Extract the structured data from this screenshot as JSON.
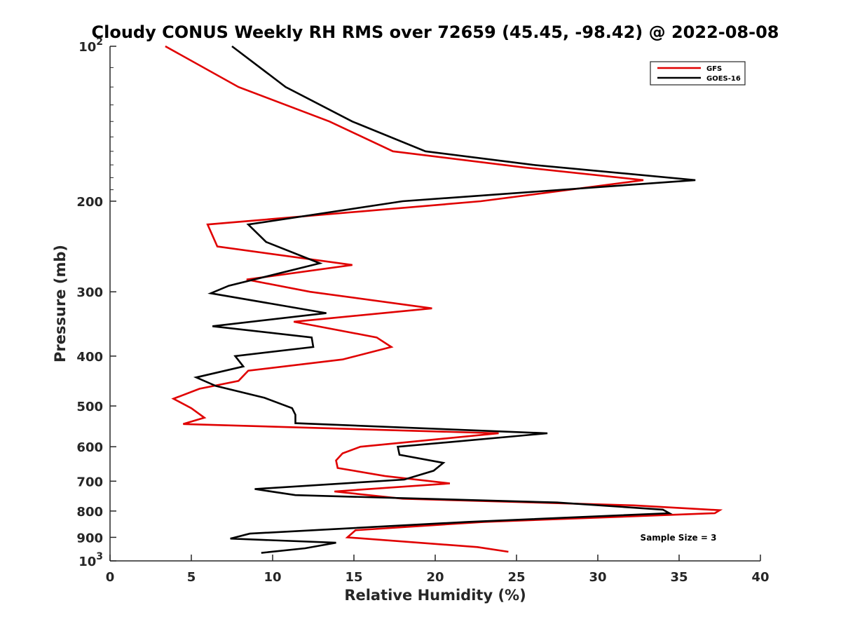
{
  "chart_data": {
    "type": "line",
    "title": "Cloudy CONUS Weekly RH RMS over 72659 (45.45, -98.42) @ 2022-08-08",
    "xlabel": "Relative Humidity (%)",
    "ylabel": "Pressure (mb)",
    "xlim": [
      0,
      40
    ],
    "ylim": [
      100,
      1000
    ],
    "y_scale": "log",
    "y_reversed": true,
    "x_ticks": [
      "0",
      "5",
      "10",
      "15",
      "20",
      "25",
      "30",
      "35",
      "40"
    ],
    "y_ticks": [
      {
        "value": 100,
        "label": "10",
        "sup": "2"
      },
      {
        "value": 200,
        "label": "200"
      },
      {
        "value": 300,
        "label": "300"
      },
      {
        "value": 400,
        "label": "400"
      },
      {
        "value": 500,
        "label": "500"
      },
      {
        "value": 600,
        "label": "600"
      },
      {
        "value": 700,
        "label": "700"
      },
      {
        "value": 800,
        "label": "800"
      },
      {
        "value": 900,
        "label": "900"
      },
      {
        "value": 1000,
        "label": "10",
        "sup": "3"
      }
    ],
    "grid": false,
    "legend_position": "top-right",
    "annotation": "Sample Size = 3",
    "series": [
      {
        "name": "GFS",
        "color": "#e00000",
        "points": [
          [
            3.4,
            100
          ],
          [
            7.9,
            120
          ],
          [
            13.5,
            140
          ],
          [
            17.4,
            160
          ],
          [
            25.5,
            172
          ],
          [
            32.8,
            182
          ],
          [
            22.8,
            200
          ],
          [
            6.0,
            222
          ],
          [
            6.6,
            245
          ],
          [
            14.9,
            266
          ],
          [
            8.4,
            284
          ],
          [
            12.3,
            300
          ],
          [
            19.8,
            323
          ],
          [
            11.3,
            343
          ],
          [
            16.4,
            368
          ],
          [
            17.3,
            384
          ],
          [
            14.3,
            406
          ],
          [
            8.5,
            427
          ],
          [
            7.9,
            447
          ],
          [
            5.5,
            463
          ],
          [
            3.9,
            484
          ],
          [
            5.0,
            505
          ],
          [
            5.8,
            527
          ],
          [
            4.5,
            542
          ],
          [
            23.9,
            565
          ],
          [
            15.4,
            600
          ],
          [
            14.3,
            618
          ],
          [
            13.9,
            638
          ],
          [
            14.0,
            660
          ],
          [
            16.9,
            684
          ],
          [
            20.9,
            707
          ],
          [
            13.8,
            733
          ],
          [
            18.0,
            757
          ],
          [
            32.2,
            780
          ],
          [
            37.5,
            797
          ],
          [
            37.2,
            808
          ],
          [
            23.0,
            840
          ],
          [
            15.1,
            872
          ],
          [
            14.6,
            900
          ],
          [
            22.6,
            940
          ],
          [
            24.5,
            960
          ]
        ]
      },
      {
        "name": "GOES-16",
        "color": "#000000",
        "points": [
          [
            7.5,
            100
          ],
          [
            10.8,
            120
          ],
          [
            14.9,
            140
          ],
          [
            19.4,
            160
          ],
          [
            26.0,
            170
          ],
          [
            36.0,
            182
          ],
          [
            18.0,
            200
          ],
          [
            8.5,
            222
          ],
          [
            9.6,
            240
          ],
          [
            12.9,
            264
          ],
          [
            7.3,
            292
          ],
          [
            6.2,
            302
          ],
          [
            13.3,
            330
          ],
          [
            6.3,
            350
          ],
          [
            12.4,
            368
          ],
          [
            12.5,
            384
          ],
          [
            7.7,
            400
          ],
          [
            8.2,
            419
          ],
          [
            5.3,
            440
          ],
          [
            6.5,
            457
          ],
          [
            9.5,
            482
          ],
          [
            11.2,
            505
          ],
          [
            11.4,
            520
          ],
          [
            11.4,
            540
          ],
          [
            26.9,
            565
          ],
          [
            17.7,
            600
          ],
          [
            17.8,
            622
          ],
          [
            20.5,
            645
          ],
          [
            19.9,
            668
          ],
          [
            18.1,
            695
          ],
          [
            8.9,
            725
          ],
          [
            11.4,
            745
          ],
          [
            27.5,
            770
          ],
          [
            34.0,
            795
          ],
          [
            34.4,
            808
          ],
          [
            22.0,
            840
          ],
          [
            8.6,
            885
          ],
          [
            7.4,
            905
          ],
          [
            13.9,
            922
          ],
          [
            12.0,
            945
          ],
          [
            9.3,
            965
          ]
        ]
      }
    ]
  }
}
